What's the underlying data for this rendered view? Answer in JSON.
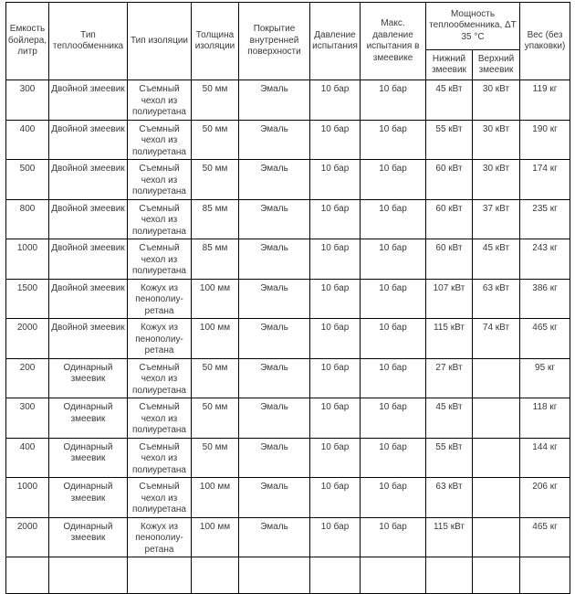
{
  "table": {
    "headers": {
      "capacity": "Емкость бойлера, литр",
      "exchanger_type": "Тип теплообменника",
      "insulation_type": "Тип изоляции",
      "insulation_thickness": "Толщина изоляции",
      "inner_coating": "Покрытие внутренней поверхности",
      "test_pressure": "Давление испытания",
      "max_coil_test_pressure": "Макс. давление испытания в змеевике",
      "power_group": "Мощность теплообменника, ΔT 35 °C",
      "lower_coil": "Нижний змеевик",
      "upper_coil": "Верхний змеевик",
      "weight": "Вес (без упаковки)"
    },
    "rows": [
      [
        "300",
        "Двойной змеевик",
        "Съемный чехол из полиуретана",
        "50 мм",
        "Эмаль",
        "10 бар",
        "10 бар",
        "45 кВт",
        "30 кВт",
        "119 кг"
      ],
      [
        "400",
        "Двойной змеевик",
        "Съемный чехол из полиуретана",
        "50 мм",
        "Эмаль",
        "10 бар",
        "10 бар",
        "55 кВт",
        "30 кВт",
        "190 кг"
      ],
      [
        "500",
        "Двойной змеевик",
        "Съемный чехол из полиуретана",
        "50 мм",
        "Эмаль",
        "10 бар",
        "10 бар",
        "60 кВт",
        "30 кВт",
        "174 кг"
      ],
      [
        "800",
        "Двойной змеевик",
        "Съемный чехол из полиуретана",
        "85 мм",
        "Эмаль",
        "10 бар",
        "10 бар",
        "60 кВт",
        "37 кВт",
        "235 кг"
      ],
      [
        "1000",
        "Двойной змеевик",
        "Съемный чехол из полиуретана",
        "85 мм",
        "Эмаль",
        "10 бар",
        "10 бар",
        "60 кВт",
        "45 кВт",
        "243 кг"
      ],
      [
        "1500",
        "Двойной змеевик",
        "Кожух из пенополиу-ретана",
        "100 мм",
        "Эмаль",
        "10 бар",
        "10 бар",
        "107 кВт",
        "63 кВт",
        "386 кг"
      ],
      [
        "2000",
        "Двойной змеевик",
        "Кожух из пенополиу-ретана",
        "100 мм",
        "Эмаль",
        "10 бар",
        "10 бар",
        "115 кВт",
        "74 кВт",
        "465 кг"
      ],
      [
        "200",
        "Одинарный змеевик",
        "Съемный чехол из полиуретана",
        "50 мм",
        "Эмаль",
        "10 бар",
        "10 бар",
        "27 кВт",
        "",
        "95 кг"
      ],
      [
        "300",
        "Одинарный змеевик",
        "Съемный чехол из полиуретана",
        "50 мм",
        "Эмаль",
        "10 бар",
        "10 бар",
        "45 кВт",
        "",
        "118 кг"
      ],
      [
        "400",
        "Одинарный змеевик",
        "Съемный чехол из полиуретана",
        "50 мм",
        "Эмаль",
        "10 бар",
        "10 бар",
        "55 кВт",
        "",
        "144 кг"
      ],
      [
        "1000",
        "Одинарный змеевик",
        "Съемный чехол из полиуретана",
        "100 мм",
        "Эмаль",
        "10 бар",
        "10 бар",
        "63 кВт",
        "",
        "206 кг"
      ],
      [
        "2000",
        "Одинарный змеевик",
        "Кожух из пенополиу-ретана",
        "100 мм",
        "Эмаль",
        "10 бар",
        "10 бар",
        "115 кВт",
        "",
        "465 кг"
      ]
    ]
  },
  "colors": {
    "border": "#000000",
    "text": "#3a3a3a",
    "background": "#ffffff"
  }
}
